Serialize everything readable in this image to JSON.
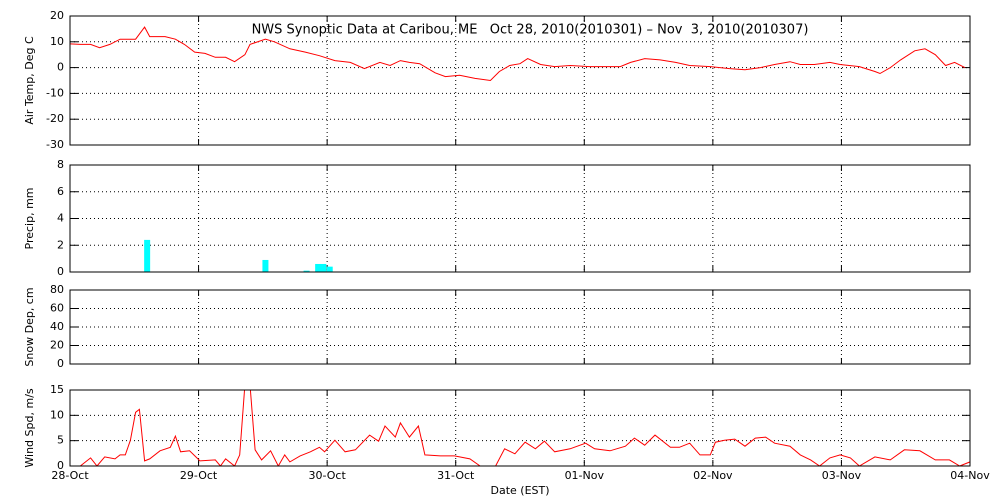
{
  "chart_data": [
    {
      "type": "line",
      "title": "NWS Synoptic Data at Caribou, ME   Oct 28, 2010(2010301) – Nov  3, 2010(2010307)",
      "ylabel": "Air Temp, Deg C",
      "ylim": [
        -30,
        20
      ],
      "yticks": [
        -30,
        -20,
        -10,
        0,
        10,
        20
      ],
      "color": "#ff0000",
      "x": [
        0,
        0.08,
        0.16,
        0.23,
        0.31,
        0.39,
        0.51,
        0.58,
        0.62,
        0.74,
        0.82,
        0.89,
        0.97,
        1.05,
        1.13,
        1.21,
        1.28,
        1.36,
        1.4,
        1.52,
        1.59,
        1.71,
        1.83,
        1.94,
        2.06,
        2.18,
        2.29,
        2.41,
        2.49,
        2.57,
        2.64,
        2.72,
        2.84,
        2.92,
        3.03,
        3.15,
        3.27,
        3.34,
        3.42,
        3.5,
        3.56,
        3.66,
        3.77,
        3.89,
        4.04,
        4.16,
        4.28,
        4.36,
        4.47,
        4.59,
        4.71,
        4.82,
        4.98,
        5.13,
        5.25,
        5.37,
        5.48,
        5.6,
        5.68,
        5.79,
        5.91,
        5.99,
        6.14,
        6.26,
        6.3,
        6.38,
        6.46,
        6.57,
        6.65,
        6.73,
        6.81,
        6.88,
        6.96
      ],
      "values": [
        9.2,
        9,
        9,
        7.7,
        9,
        11,
        11,
        15.7,
        12,
        12,
        11,
        9,
        6,
        5.5,
        4,
        4,
        2.3,
        5,
        9,
        11,
        10,
        7.3,
        6,
        4.6,
        2.7,
        2,
        -0.4,
        2,
        0.8,
        2.7,
        2,
        1.5,
        -2,
        -3.5,
        -3,
        -4.2,
        -5,
        -1.5,
        0.8,
        1.5,
        3.5,
        1.2,
        0.4,
        0.8,
        0.4,
        0.4,
        0.4,
        2,
        3.5,
        3,
        2,
        0.8,
        0.4,
        -0.4,
        -0.8,
        0,
        1.2,
        2.3,
        1.2,
        1.2,
        2,
        1.2,
        0.4,
        -1.5,
        -2.3,
        0,
        3,
        6.5,
        7.3,
        5,
        0.8,
        2,
        0
      ]
    },
    {
      "type": "bar",
      "ylabel": "Precip, mm",
      "ylim": [
        0,
        8
      ],
      "yticks": [
        0,
        2,
        4,
        6,
        8
      ],
      "color": "#00ffff",
      "x": [
        0.6,
        1.52,
        1.84,
        1.93,
        1.97,
        2.02
      ],
      "values": [
        2.4,
        0.9,
        0.1,
        0.6,
        0.6,
        0.4
      ]
    },
    {
      "type": "line",
      "ylabel": "Snow Dep, cm",
      "ylim": [
        0,
        80
      ],
      "yticks": [
        0,
        20,
        40,
        60,
        80
      ]
    },
    {
      "type": "line",
      "ylabel": "Wind Spd, m/s",
      "xlabel": "Date (EST)",
      "ylim": [
        0,
        15
      ],
      "yticks": [
        0,
        5,
        10,
        15
      ],
      "color": "#ff0000",
      "xlim": [
        0,
        7
      ],
      "xticks": [
        {
          "value": 0,
          "label": "28-Oct"
        },
        {
          "value": 1,
          "label": "29-Oct"
        },
        {
          "value": 2,
          "label": "30-Oct"
        },
        {
          "value": 3,
          "label": "31-Oct"
        },
        {
          "value": 4,
          "label": "01-Nov"
        },
        {
          "value": 5,
          "label": "02-Nov"
        },
        {
          "value": 6,
          "label": "03-Nov"
        },
        {
          "value": 7,
          "label": "04-Nov"
        }
      ],
      "x": [
        0,
        0.08,
        0.16,
        0.21,
        0.27,
        0.35,
        0.39,
        0.43,
        0.47,
        0.51,
        0.54,
        0.58,
        0.62,
        0.7,
        0.78,
        0.82,
        0.86,
        0.93,
        1.01,
        1.13,
        1.17,
        1.21,
        1.28,
        1.32,
        1.36,
        1.4,
        1.44,
        1.49,
        1.56,
        1.62,
        1.67,
        1.71,
        1.79,
        1.87,
        1.94,
        1.98,
        2.06,
        2.14,
        2.22,
        2.33,
        2.4,
        2.45,
        2.53,
        2.57,
        2.64,
        2.71,
        2.76,
        2.88,
        2.99,
        3.11,
        3.19,
        3.31,
        3.38,
        3.46,
        3.54,
        3.62,
        3.69,
        3.77,
        3.89,
        4.01,
        4.08,
        4.2,
        4.32,
        4.39,
        4.47,
        4.55,
        4.67,
        4.74,
        4.82,
        4.9,
        4.98,
        5.02,
        5.09,
        5.17,
        5.25,
        5.33,
        5.41,
        5.48,
        5.6,
        5.68,
        5.76,
        5.83,
        5.91,
        5.99,
        6.07,
        6.14,
        6.26,
        6.38,
        6.49,
        6.61,
        6.73,
        6.84,
        6.92,
        7.0
      ],
      "values": [
        0,
        0,
        1.6,
        0,
        1.8,
        1.4,
        2.2,
        2.2,
        5.1,
        10.6,
        11.2,
        1,
        1.4,
        3,
        3.7,
        5.9,
        2.8,
        3,
        1,
        1.2,
        0,
        1.4,
        0,
        2.2,
        16,
        16,
        3.2,
        1.2,
        3,
        0,
        2.2,
        0.8,
        2,
        2.8,
        3.7,
        2.8,
        5.1,
        2.8,
        3.2,
        6.1,
        4.9,
        7.9,
        5.7,
        8.5,
        5.7,
        7.9,
        2.2,
        2,
        2,
        1.4,
        0,
        0,
        3.4,
        2.4,
        4.7,
        3.4,
        4.9,
        2.8,
        3.4,
        4.5,
        3.4,
        3,
        3.9,
        5.5,
        4.1,
        6.1,
        3.7,
        3.7,
        4.5,
        2.2,
        2.2,
        4.7,
        5.1,
        5.3,
        3.9,
        5.5,
        5.7,
        4.5,
        3.9,
        2.2,
        1.2,
        0,
        1.6,
        2.2,
        1.6,
        0,
        1.8,
        1.2,
        3.2,
        3,
        1.2,
        1.2,
        0,
        0.8
      ]
    }
  ]
}
